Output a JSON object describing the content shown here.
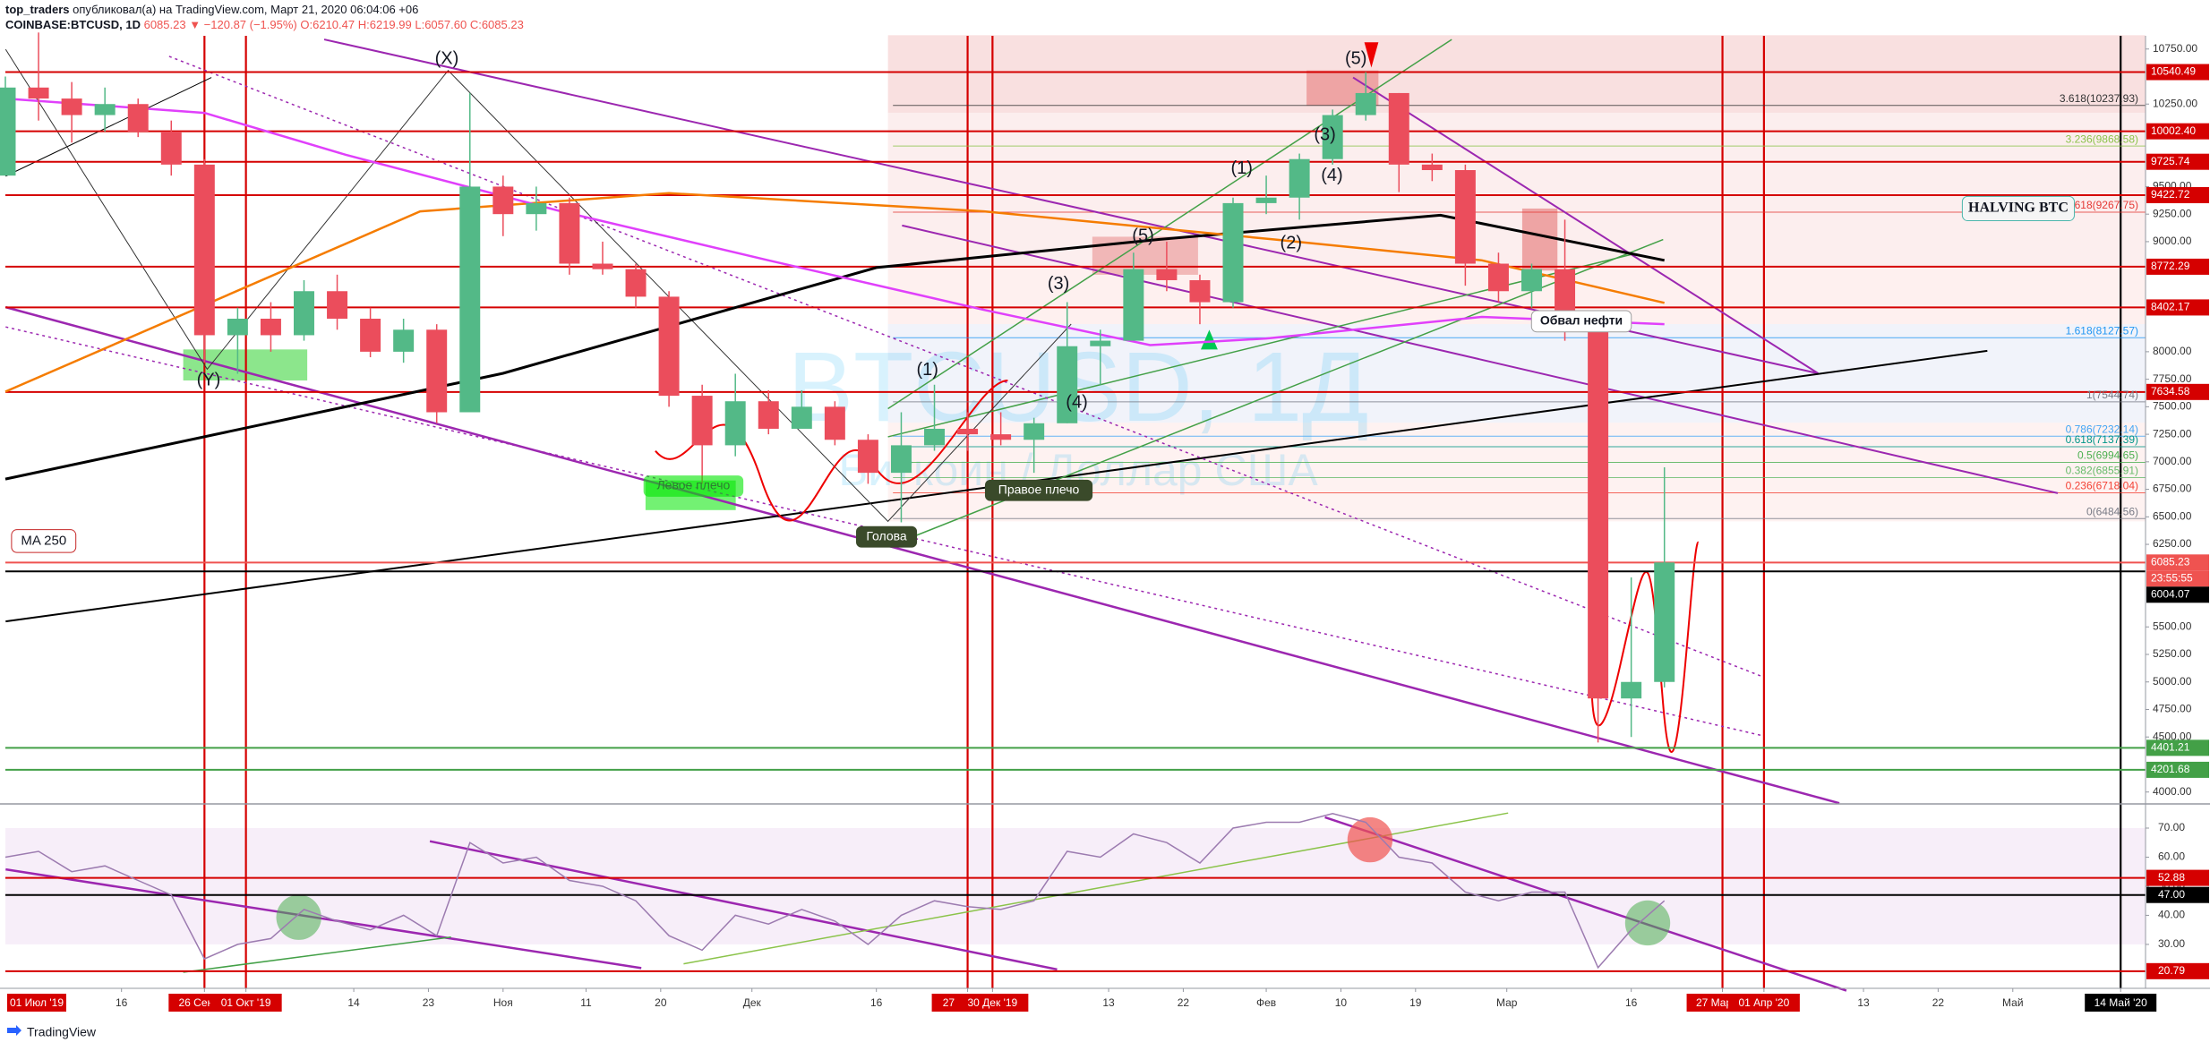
{
  "chart_data": {
    "type": "candlestick",
    "author": "top_traders",
    "published": "опубликовал(а) на TradingView.com, Март 21, 2020 06:04:06 +06",
    "title": "COINBASE:BTCUSD, 1D",
    "quote": "6085.23 ▼ −120.87 (−1.95%)",
    "ohlc": [
      "O:6210.47",
      "H:6219.99",
      "L:6057.60",
      "C:6085.23"
    ],
    "watermark": [
      "BTCUSD, 1Д",
      "Биткоин / Доллар США"
    ],
    "footer": "TradingView",
    "up_color": "#53b987",
    "down_color": "#eb4d5c",
    "x": [
      "2019-09-02",
      "2019-09-06",
      "2019-09-10",
      "2019-09-14",
      "2019-09-18",
      "2019-09-22",
      "2019-09-26",
      "2019-09-30",
      "2019-10-04",
      "2019-10-08",
      "2019-10-12",
      "2019-10-16",
      "2019-10-20",
      "2019-10-24",
      "2019-10-28",
      "2019-11-01",
      "2019-11-05",
      "2019-11-09",
      "2019-11-13",
      "2019-11-17",
      "2019-11-21",
      "2019-11-25",
      "2019-11-29",
      "2019-12-03",
      "2019-12-07",
      "2019-12-11",
      "2019-12-15",
      "2019-12-19",
      "2019-12-23",
      "2019-12-27",
      "2019-12-31",
      "2020-01-04",
      "2020-01-08",
      "2020-01-12",
      "2020-01-16",
      "2020-01-20",
      "2020-01-24",
      "2020-01-28",
      "2020-02-01",
      "2020-02-05",
      "2020-02-09",
      "2020-02-13",
      "2020-02-17",
      "2020-02-21",
      "2020-02-25",
      "2020-02-29",
      "2020-03-04",
      "2020-03-08",
      "2020-03-12",
      "2020-03-16",
      "2020-03-20"
    ],
    "open": [
      9600,
      10400,
      10300,
      10150,
      10250,
      10000,
      9700,
      8150,
      8300,
      8150,
      8550,
      8300,
      8000,
      8200,
      7450,
      9500,
      9250,
      9350,
      8800,
      8750,
      8500,
      7600,
      7150,
      7550,
      7300,
      7500,
      7200,
      6900,
      7150,
      7300,
      7250,
      7200,
      7350,
      8050,
      8100,
      8750,
      8650,
      8450,
      9350,
      9400,
      9750,
      10150,
      10350,
      9700,
      9650,
      8800,
      8550,
      8750,
      8200,
      4850,
      5000
    ],
    "high": [
      10500,
      10900,
      10450,
      10400,
      10300,
      10100,
      9750,
      8400,
      8450,
      8650,
      8700,
      8400,
      8300,
      8250,
      10350,
      9600,
      9500,
      9400,
      9000,
      8800,
      8550,
      7700,
      7800,
      7650,
      7650,
      7550,
      7250,
      7450,
      7700,
      7450,
      7450,
      7400,
      8450,
      8200,
      8900,
      9000,
      8700,
      9400,
      9600,
      9800,
      10200,
      10540,
      10350,
      9800,
      9700,
      8900,
      8800,
      9200,
      8200,
      5950,
      6950
    ],
    "low": [
      9600,
      10100,
      9900,
      10000,
      9950,
      9600,
      7900,
      7800,
      8000,
      8100,
      8200,
      7950,
      7900,
      7350,
      7450,
      9050,
      9100,
      8700,
      8700,
      8400,
      7500,
      6800,
      7050,
      7250,
      7350,
      7150,
      6800,
      6450,
      7100,
      7100,
      7150,
      6900,
      7350,
      7700,
      8100,
      8550,
      8250,
      8400,
      9250,
      9200,
      9700,
      10100,
      9450,
      9550,
      8600,
      8450,
      8400,
      8100,
      4450,
      4500,
      4950
    ],
    "close": [
      10400,
      10300,
      10150,
      10250,
      10000,
      9700,
      8150,
      8300,
      8150,
      8550,
      8300,
      8000,
      8200,
      7450,
      9500,
      9250,
      9350,
      8800,
      8750,
      8500,
      7600,
      7150,
      7550,
      7300,
      7500,
      7200,
      6900,
      7150,
      7300,
      7250,
      7200,
      7350,
      8050,
      8100,
      8750,
      8650,
      8450,
      9350,
      9400,
      9750,
      10150,
      10350,
      9700,
      9650,
      8800,
      8550,
      8750,
      8200,
      4850,
      5000,
      6085.23
    ],
    "overlays": [
      {
        "color": "#000000",
        "x": [
          "2019-09-02",
          "2019-11-01",
          "2019-12-16",
          "2020-01-19",
          "2020-02-22",
          "2020-03-20"
        ],
        "values": [
          6843,
          7804,
          8764,
          9020,
          9240,
          8830
        ]
      },
      {
        "color": "#f57c00",
        "x": [
          "2019-09-02",
          "2019-10-22",
          "2019-11-21",
          "2019-12-29",
          "2020-02-02",
          "2020-02-27",
          "2020-03-20"
        ],
        "values": [
          7637,
          9275,
          9440,
          9275,
          9020,
          8830,
          8444
        ]
      },
      {
        "color": "#e040fb",
        "x": [
          "2019-09-02",
          "2019-09-26",
          "2019-10-13",
          "2019-11-08",
          "2019-12-03",
          "2019-12-29",
          "2020-01-18",
          "2020-02-01",
          "2020-02-27",
          "2020-03-20"
        ],
        "values": [
          10300,
          10170,
          9790,
          9275,
          8830,
          8380,
          8060,
          8120,
          8316,
          8250
        ]
      }
    ],
    "xlim": [
      "2019-09-02",
      "2020-05-17"
    ],
    "start_label": "01 Июл '19",
    "xticks": [
      {
        "value": "2019-09-16",
        "label": "16"
      },
      {
        "value": "2019-09-26",
        "label": "26 Сен '19",
        "box": "#d50000"
      },
      {
        "value": "2019-10-01",
        "label": "01 Окт '19",
        "box": "#d50000"
      },
      {
        "value": "2019-10-14",
        "label": "14"
      },
      {
        "value": "2019-10-23",
        "label": "23"
      },
      {
        "value": "2019-11-01",
        "label": "Ноя"
      },
      {
        "value": "2019-11-11",
        "label": "11"
      },
      {
        "value": "2019-11-20",
        "label": "20"
      },
      {
        "value": "2019-12-01",
        "label": "Дек"
      },
      {
        "value": "2019-12-16",
        "label": "16"
      },
      {
        "value": "2019-12-27",
        "label": "27 Дек '19",
        "box": "#d50000"
      },
      {
        "value": "2019-12-30",
        "label": "30 Дек '19",
        "box": "#d50000"
      },
      {
        "value": "2020-01-13",
        "label": "13"
      },
      {
        "value": "2020-01-22",
        "label": "22"
      },
      {
        "value": "2020-02-01",
        "label": "Фев"
      },
      {
        "value": "2020-02-10",
        "label": "10"
      },
      {
        "value": "2020-02-19",
        "label": "19"
      },
      {
        "value": "2020-03-01",
        "label": "Мар"
      },
      {
        "value": "2020-03-16",
        "label": "16"
      },
      {
        "value": "2020-03-27",
        "label": "27 Мар '20",
        "box": "#d50000"
      },
      {
        "value": "2020-04-01",
        "label": "01 Апр '20",
        "box": "#d50000"
      },
      {
        "value": "2020-04-13",
        "label": "13"
      },
      {
        "value": "2020-04-22",
        "label": "22"
      },
      {
        "value": "2020-05-01",
        "label": "Май"
      },
      {
        "value": "2020-05-14",
        "label": "14 Май '20",
        "box": "#000000"
      }
    ],
    "ylim": [
      3900,
      10870
    ],
    "yticks": [
      {
        "value": 4000,
        "label": "4000.00"
      },
      {
        "value": 4500,
        "label": "4500.00"
      },
      {
        "value": 4750,
        "label": "4750.00"
      },
      {
        "value": 5000,
        "label": "5000.00"
      },
      {
        "value": 5250,
        "label": "5250.00"
      },
      {
        "value": 5500,
        "label": "5500.00"
      },
      {
        "value": 6250,
        "label": "6250.00"
      },
      {
        "value": 6500,
        "label": "6500.00"
      },
      {
        "value": 6750,
        "label": "6750.00"
      },
      {
        "value": 7000,
        "label": "7000.00"
      },
      {
        "value": 7250,
        "label": "7250.00"
      },
      {
        "value": 7500,
        "label": "7500.00"
      },
      {
        "value": 7750,
        "label": "7750.00"
      },
      {
        "value": 8000,
        "label": "8000.00"
      },
      {
        "value": 9000,
        "label": "9000.00"
      },
      {
        "value": 9250,
        "label": "9250.00"
      },
      {
        "value": 9500,
        "label": "9500.00"
      },
      {
        "value": 10250,
        "label": "10250.00"
      },
      {
        "value": 10750,
        "label": "10750.00"
      }
    ],
    "levels": [
      {
        "value": 10540.49,
        "label": "10540.49",
        "color": "#d50000"
      },
      {
        "value": 10002.4,
        "label": "10002.40",
        "color": "#d50000"
      },
      {
        "value": 9725.74,
        "label": "9725.74",
        "color": "#d50000"
      },
      {
        "value": 9422.72,
        "label": "9422.72",
        "color": "#d50000"
      },
      {
        "value": 8772.29,
        "label": "8772.29",
        "color": "#d50000"
      },
      {
        "value": 8402.17,
        "label": "8402.17",
        "color": "#d50000"
      },
      {
        "value": 7634.58,
        "label": "7634.58",
        "color": "#d50000"
      },
      {
        "value": 6085.23,
        "label": "6085.23",
        "color": "#ef5350"
      },
      {
        "value": 6004.07,
        "label": "6004.07",
        "color": "#000000"
      },
      {
        "value": 4401.21,
        "label": "4401.21",
        "color": "#43a047"
      },
      {
        "value": 4201.68,
        "label": "4201.68",
        "color": "#43a047"
      }
    ],
    "countdown": "23:55:55",
    "fib_start": "2019-12-18",
    "fib": [
      {
        "value": 10237.93,
        "label": "3.618(10237.93)",
        "color": "#333333"
      },
      {
        "value": 9868.58,
        "label": "3.236(9868.58)",
        "color": "#8bc34a"
      },
      {
        "value": 9267.75,
        "label": "2.618(9267.75)",
        "color": "#e53935"
      },
      {
        "value": 8127.57,
        "label": "1.618(8127.57)",
        "color": "#2196f3"
      },
      {
        "value": 7544.74,
        "label": "1(7544.74)",
        "color": "#787b86"
      },
      {
        "value": 7232.14,
        "label": "0.786(7232.14)",
        "color": "#42a5f5"
      },
      {
        "value": 7137.39,
        "label": "0.618(7137.39)",
        "color": "#009688"
      },
      {
        "value": 6994.65,
        "label": "0.5(6994.65)",
        "color": "#4caf50"
      },
      {
        "value": 6855.91,
        "label": "0.382(6855.91)",
        "color": "#66bb6a"
      },
      {
        "value": 6718.04,
        "label": "0.236(6718.04)",
        "color": "#f44336"
      },
      {
        "value": 6484.56,
        "label": "0(6484.56)",
        "color": "#787b86"
      }
    ],
    "annotations": [
      "(X)",
      "(Y)",
      "(1)",
      "(2)",
      "(3)",
      "(4)",
      "(5)",
      "(1)",
      "(2)",
      "(3)",
      "(4)",
      "(5)",
      "MA 250",
      "HALVING BTC",
      "Обвал нефти",
      "Левое плечо",
      "Голова",
      "Правое плечо"
    ],
    "rsi": {
      "color": "#9c7bb0",
      "values": [
        60,
        62,
        55,
        57,
        52,
        47,
        25,
        30,
        32,
        42,
        38,
        35,
        40,
        33,
        65,
        58,
        60,
        52,
        50,
        45,
        33,
        28,
        40,
        37,
        42,
        38,
        30,
        40,
        45,
        43,
        42,
        45,
        62,
        60,
        68,
        65,
        58,
        70,
        72,
        72,
        75,
        72,
        60,
        58,
        48,
        45,
        48,
        48,
        22,
        35,
        45
      ],
      "ylim": [
        15.5,
        77.7
      ],
      "yticks": [
        {
          "value": 30,
          "label": "30.00"
        },
        {
          "value": 40,
          "label": "40.00"
        },
        {
          "value": 50,
          "label": "50.00"
        },
        {
          "value": 60,
          "label": "60.00"
        },
        {
          "value": 70,
          "label": "70.00"
        }
      ],
      "levels": [
        {
          "value": 52.88,
          "label": "52.88",
          "color": "#d50000"
        },
        {
          "value": 47,
          "label": "47.00",
          "color": "#000000"
        },
        {
          "value": 20.79,
          "label": "20.79",
          "color": "#d50000"
        }
      ]
    }
  }
}
